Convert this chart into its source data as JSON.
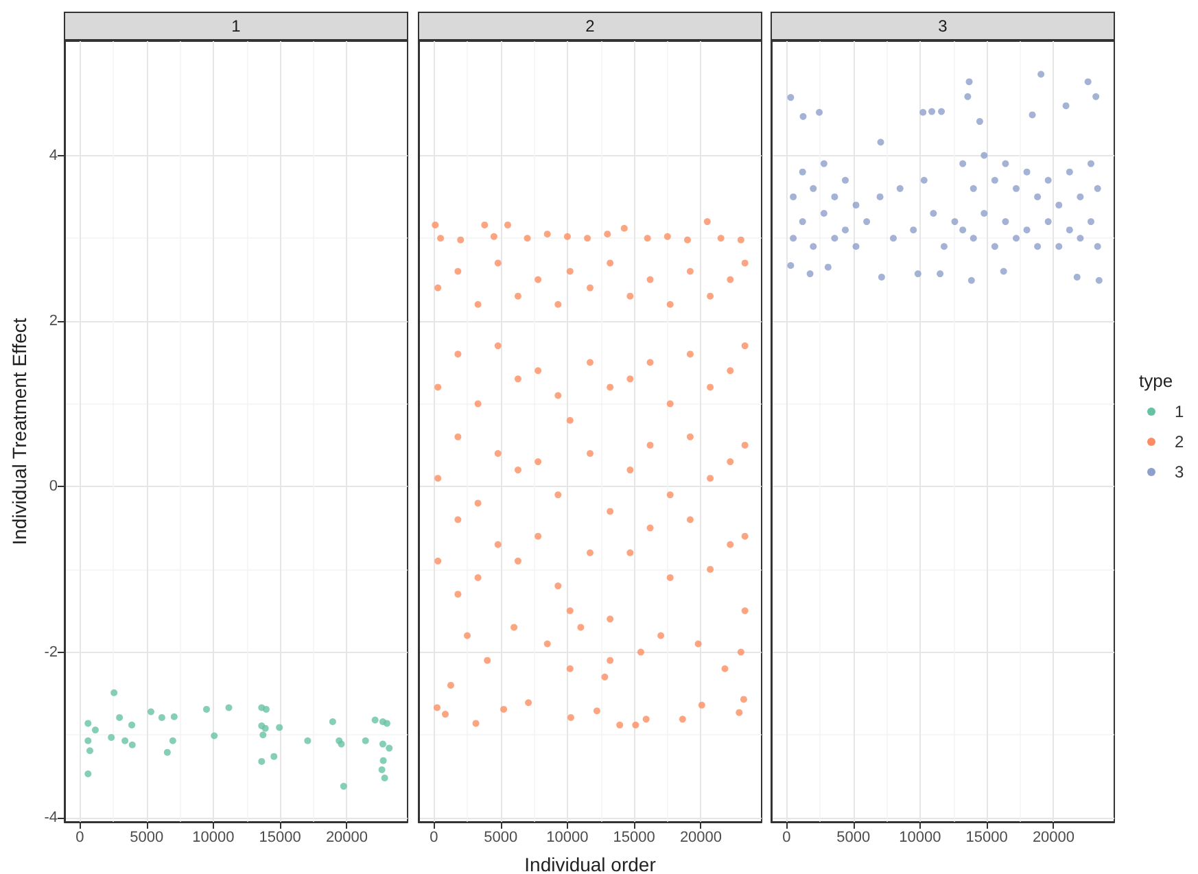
{
  "chart_data": [
    {
      "type": "scatter",
      "title": "1",
      "ylabel": "Individual Treatment Effect",
      "xlim": [
        -1150,
        24550
      ],
      "xticks": [
        0,
        5000,
        10000,
        15000,
        20000
      ],
      "ylim": [
        -4.05,
        5.38
      ],
      "yticks": [
        -4,
        -2,
        0,
        2,
        4
      ],
      "grid": true,
      "marker": "circle",
      "series": [
        {
          "name": "1",
          "color": "#66c2a5",
          "x": [
            614,
            614,
            751,
            614,
            1160,
            2355,
            2560,
            2970,
            3380,
            3890,
            3925,
            5324,
            6143,
            6553,
            6963,
            7065,
            9488,
            10068,
            11160,
            13618,
            13959,
            13618,
            13891,
            13720,
            13618,
            14540,
            14949,
            17065,
            18942,
            19420,
            19590,
            19761,
            21400,
            22116,
            22696,
            23003,
            22696,
            23174,
            22730,
            22628,
            22833
          ],
          "values": [
            -2.86,
            -3.07,
            -3.19,
            -3.47,
            -2.94,
            -3.03,
            -2.49,
            -2.79,
            -3.07,
            -2.88,
            -3.12,
            -2.72,
            -2.79,
            -3.21,
            -3.07,
            -2.78,
            -2.69,
            -3.01,
            -2.67,
            -2.67,
            -2.69,
            -2.89,
            -2.92,
            -3.0,
            -3.32,
            -3.26,
            -2.91,
            -3.07,
            -2.84,
            -3.07,
            -3.11,
            -3.62,
            -3.07,
            -2.82,
            -2.84,
            -2.86,
            -3.11,
            -3.16,
            -3.31,
            -3.42,
            -3.52
          ]
        }
      ]
    },
    {
      "type": "scatter",
      "title": "2",
      "xlabel": "Individual order",
      "xlim": [
        -1150,
        24550
      ],
      "xticks": [
        0,
        5000,
        10000,
        15000,
        20000
      ],
      "ylim": [
        -4.05,
        5.38
      ],
      "yticks": [
        -4,
        -2,
        0,
        2,
        4
      ],
      "grid": true,
      "marker": "circle",
      "tick_labels": "x",
      "series": [
        {
          "name": "2",
          "color": "#fc8d62",
          "x": [
            100,
            3800,
            5530,
            14260,
            20480,
            500,
            2000,
            4500,
            7000,
            8500,
            10000,
            11500,
            13000,
            16000,
            17500,
            19000,
            21500,
            23000,
            300,
            300,
            300,
            300,
            1800,
            1800,
            1800,
            1800,
            1800,
            3300,
            3300,
            3300,
            3300,
            4800,
            4800,
            4800,
            4800,
            6300,
            6300,
            6300,
            6300,
            7800,
            7800,
            7800,
            7800,
            9300,
            9300,
            9300,
            9300,
            10200,
            10200,
            10200,
            10200,
            11700,
            11700,
            11700,
            11700,
            13200,
            13200,
            13200,
            13200,
            13200,
            14700,
            14700,
            14700,
            14700,
            16200,
            16200,
            16200,
            16200,
            17700,
            17700,
            17700,
            17700,
            19200,
            19200,
            19200,
            19200,
            20700,
            20700,
            20700,
            20700,
            22200,
            22200,
            22200,
            22200,
            23300,
            23300,
            23300,
            23300,
            23300,
            240,
            855,
            1265,
            3145,
            5230,
            7080,
            10260,
            12210,
            13920,
            15110,
            15900,
            18630,
            20070,
            22870,
            23210,
            2500,
            4000,
            6000,
            8500,
            11000,
            12800,
            15500,
            17000,
            19800,
            21800,
            23000
          ],
          "values": [
            3.16,
            3.16,
            3.16,
            3.12,
            3.2,
            3.0,
            2.98,
            3.02,
            3.0,
            3.05,
            3.02,
            3.0,
            3.05,
            3.0,
            3.02,
            2.98,
            3.0,
            2.98,
            2.4,
            1.2,
            0.1,
            -0.9,
            2.6,
            1.6,
            0.6,
            -0.4,
            -1.3,
            2.2,
            1.0,
            -0.2,
            -1.1,
            2.7,
            1.7,
            0.4,
            -0.7,
            2.3,
            1.3,
            0.2,
            -0.9,
            2.5,
            1.4,
            0.3,
            -0.6,
            2.2,
            1.1,
            -0.1,
            -1.2,
            2.6,
            0.8,
            -1.5,
            -2.2,
            2.4,
            1.5,
            0.4,
            -0.8,
            2.7,
            1.2,
            -0.3,
            -1.6,
            -2.1,
            2.3,
            1.3,
            0.2,
            -0.8,
            2.5,
            1.5,
            0.5,
            -0.5,
            2.2,
            1.0,
            -0.1,
            -1.1,
            2.6,
            1.6,
            0.6,
            -0.4,
            2.3,
            1.2,
            0.1,
            -1.0,
            2.5,
            1.4,
            0.3,
            -0.7,
            2.7,
            1.7,
            0.5,
            -0.6,
            -1.5,
            -2.67,
            -2.75,
            -2.4,
            -2.86,
            -2.69,
            -2.61,
            -2.79,
            -2.71,
            -2.88,
            -2.88,
            -2.81,
            -2.81,
            -2.64,
            -2.73,
            -2.57,
            -1.8,
            -2.1,
            -1.7,
            -1.9,
            -1.7,
            -2.3,
            -2.0,
            -1.8,
            -1.9,
            -2.2,
            -2.0
          ]
        }
      ]
    },
    {
      "type": "scatter",
      "title": "3",
      "legend_title": "type",
      "legend": "right",
      "xlim": [
        -1150,
        24550
      ],
      "xticks": [
        0,
        5000,
        10000,
        15000,
        20000
      ],
      "ylim": [
        -4.05,
        5.38
      ],
      "yticks": [
        -4,
        -2,
        0,
        2,
        4
      ],
      "grid": true,
      "marker": "circle",
      "tick_labels": "x",
      "series": [
        {
          "name": "3",
          "color": "#8da0cb",
          "x": [
            310,
            2450,
            1240,
            10220,
            10880,
            11600,
            13680,
            13570,
            14470,
            18410,
            20930,
            22580,
            23170,
            7050,
            19060,
            310,
            1760,
            7120,
            9840,
            11500,
            13850,
            16260,
            21760,
            23410,
            3110,
            500,
            500,
            1200,
            1200,
            2000,
            2000,
            2800,
            2800,
            3600,
            3600,
            4400,
            4400,
            5200,
            5200,
            6000,
            7000,
            8000,
            8500,
            9500,
            10300,
            11000,
            11800,
            12600,
            13200,
            13200,
            14000,
            14000,
            14800,
            14800,
            15600,
            15600,
            16400,
            16400,
            17200,
            17200,
            18000,
            18000,
            18800,
            18800,
            19600,
            19600,
            20400,
            20400,
            21200,
            21200,
            22000,
            22000,
            22800,
            22800,
            23300,
            23300
          ],
          "values": [
            4.7,
            4.52,
            4.47,
            4.52,
            4.53,
            4.53,
            4.89,
            4.71,
            4.41,
            4.49,
            4.6,
            4.89,
            4.71,
            4.16,
            4.98,
            2.67,
            2.57,
            2.53,
            2.57,
            2.57,
            2.49,
            2.6,
            2.53,
            2.49,
            2.65,
            3.5,
            3.0,
            3.8,
            3.2,
            3.6,
            2.9,
            3.9,
            3.3,
            3.5,
            3.0,
            3.7,
            3.1,
            3.4,
            2.9,
            3.2,
            3.5,
            3.0,
            3.6,
            3.1,
            3.7,
            3.3,
            2.9,
            3.2,
            3.9,
            3.1,
            3.6,
            3.0,
            4.0,
            3.3,
            3.7,
            2.9,
            3.9,
            3.2,
            3.6,
            3.0,
            3.8,
            3.1,
            3.5,
            2.9,
            3.7,
            3.2,
            3.4,
            2.9,
            3.8,
            3.1,
            3.5,
            3.0,
            3.9,
            3.2,
            3.6,
            2.9
          ]
        }
      ]
    }
  ]
}
